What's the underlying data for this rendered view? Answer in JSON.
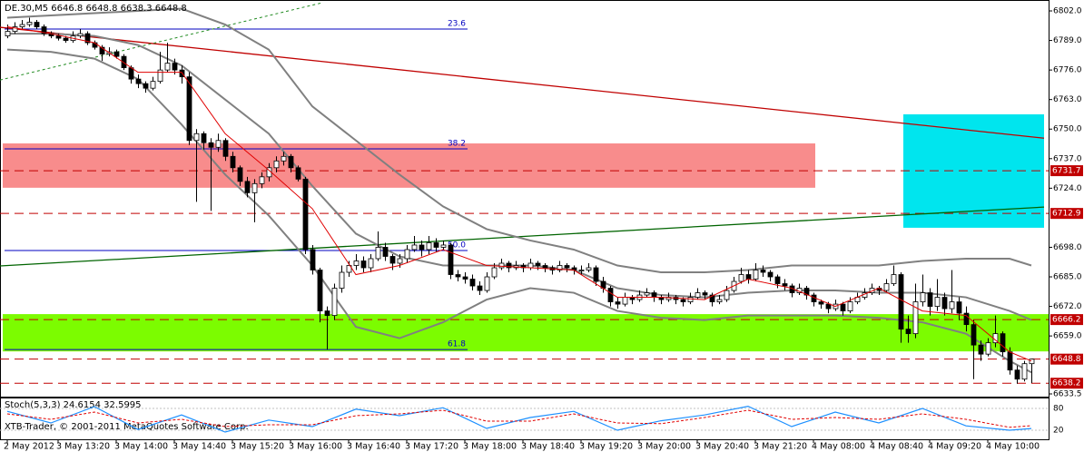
{
  "chart_data": {
    "type": "candlestick",
    "title": "DE.30,M5  6646.8 6648.8 6638.3 6648.8",
    "footer": "XTB-Trader, © 2001-2011 MetaQuotes Software Corp.",
    "categories": [
      "2 May 2012",
      null,
      null,
      null,
      null,
      null,
      null,
      "3 May 13:20",
      null,
      null,
      null,
      null,
      null,
      null,
      null,
      "3 May 14:00",
      null,
      null,
      null,
      null,
      null,
      null,
      null,
      "3 May 14:40",
      null,
      null,
      null,
      null,
      null,
      null,
      null,
      "3 May 15:20",
      null,
      null,
      null,
      null,
      null,
      null,
      null,
      "3 May 16:00",
      null,
      null,
      null,
      null,
      null,
      null,
      null,
      "3 May 16:40",
      null,
      null,
      null,
      null,
      null,
      null,
      null,
      "3 May 17:20",
      null,
      null,
      null,
      null,
      null,
      null,
      null,
      "3 May 18:00",
      null,
      null,
      null,
      null,
      null,
      null,
      null,
      "3 May 18:40",
      null,
      null,
      null,
      null,
      null,
      null,
      null,
      "3 May 19:20",
      null,
      null,
      null,
      null,
      null,
      null,
      null,
      "3 May 20:00",
      null,
      null,
      null,
      null,
      null,
      null,
      null,
      "3 May 20:40",
      null,
      null,
      null,
      null,
      null,
      null,
      null,
      "3 May 21:20",
      null,
      null,
      null,
      null,
      null,
      null,
      null,
      "4 May 08:00",
      null,
      null,
      null,
      null,
      null,
      null,
      null,
      "4 May 08:40",
      null,
      null,
      null,
      null,
      null,
      null,
      null,
      "4 May 09:20",
      null,
      null,
      null,
      null,
      null,
      null,
      null,
      "4 May 10:00",
      null,
      null,
      null,
      null,
      null,
      null
    ],
    "candles": [
      [
        6791,
        6796,
        6790,
        6793
      ],
      [
        6793,
        6797,
        6792,
        6795
      ],
      [
        6795,
        6798,
        6794,
        6796
      ],
      [
        6796,
        6799,
        6795,
        6797
      ],
      [
        6797,
        6798,
        6794,
        6795
      ],
      [
        6795,
        6796,
        6791,
        6792
      ],
      [
        6792,
        6793,
        6790,
        6791
      ],
      [
        6791,
        6792,
        6789,
        6790
      ],
      [
        6790,
        6791,
        6788,
        6789
      ],
      [
        6789,
        6793,
        6788,
        6791
      ],
      [
        6791,
        6794,
        6790,
        6792
      ],
      [
        6792,
        6793,
        6787,
        6788
      ],
      [
        6788,
        6789,
        6785,
        6786
      ],
      [
        6786,
        6787,
        6780,
        6783
      ],
      [
        6783,
        6786,
        6782,
        6784
      ],
      [
        6784,
        6785,
        6781,
        6782
      ],
      [
        6782,
        6783,
        6776,
        6777
      ],
      [
        6777,
        6778,
        6770,
        6772
      ],
      [
        6772,
        6774,
        6768,
        6770
      ],
      [
        6770,
        6771,
        6766,
        6768
      ],
      [
        6768,
        6773,
        6767,
        6771
      ],
      [
        6771,
        6784,
        6770,
        6776
      ],
      [
        6776,
        6788,
        6775,
        6779
      ],
      [
        6779,
        6781,
        6774,
        6776
      ],
      [
        6776,
        6778,
        6770,
        6773
      ],
      [
        6773,
        6775,
        6743,
        6745
      ],
      [
        6745,
        6750,
        6718,
        6748
      ],
      [
        6748,
        6749,
        6741,
        6744
      ],
      [
        6744,
        6746,
        6714,
        6742
      ],
      [
        6742,
        6748,
        6740,
        6745
      ],
      [
        6745,
        6746,
        6736,
        6738
      ],
      [
        6738,
        6740,
        6731,
        6733
      ],
      [
        6733,
        6734,
        6725,
        6727
      ],
      [
        6727,
        6729,
        6720,
        6722
      ],
      [
        6722,
        6728,
        6709,
        6726
      ],
      [
        6726,
        6731,
        6724,
        6729
      ],
      [
        6729,
        6735,
        6727,
        6733
      ],
      [
        6733,
        6738,
        6731,
        6736
      ],
      [
        6736,
        6740,
        6734,
        6738
      ],
      [
        6738,
        6739,
        6731,
        6733
      ],
      [
        6733,
        6734,
        6727,
        6728
      ],
      [
        6728,
        6729,
        6695,
        6697
      ],
      [
        6697,
        6699,
        6686,
        6688
      ],
      [
        6688,
        6689,
        6665,
        6670
      ],
      [
        6670,
        6672,
        6653,
        6668
      ],
      [
        6668,
        6682,
        6666,
        6680
      ],
      [
        6680,
        6690,
        6678,
        6687
      ],
      [
        6687,
        6692,
        6685,
        6690
      ],
      [
        6690,
        6695,
        6688,
        6692
      ],
      [
        6692,
        6694,
        6687,
        6689
      ],
      [
        6689,
        6695,
        6687,
        6693
      ],
      [
        6693,
        6705,
        6692,
        6698
      ],
      [
        6698,
        6700,
        6692,
        6694
      ],
      [
        6694,
        6695,
        6688,
        6691
      ],
      [
        6691,
        6695,
        6689,
        6693
      ],
      [
        6693,
        6699,
        6691,
        6697
      ],
      [
        6697,
        6703,
        6696,
        6699
      ],
      [
        6699,
        6701,
        6694,
        6697
      ],
      [
        6697,
        6703,
        6695,
        6700
      ],
      [
        6700,
        6702,
        6696,
        6698
      ],
      [
        6698,
        6701,
        6697,
        6699
      ],
      [
        6699,
        6700,
        6684,
        6686
      ],
      [
        6686,
        6688,
        6683,
        6685
      ],
      [
        6685,
        6687,
        6682,
        6684
      ],
      [
        6684,
        6686,
        6679,
        6681
      ],
      [
        6681,
        6683,
        6677,
        6679
      ],
      [
        6679,
        6687,
        6678,
        6685
      ],
      [
        6685,
        6691,
        6684,
        6689
      ],
      [
        6689,
        6693,
        6688,
        6691
      ],
      [
        6691,
        6692,
        6687,
        6689
      ],
      [
        6689,
        6692,
        6688,
        6690
      ],
      [
        6690,
        6691,
        6687,
        6689
      ],
      [
        6689,
        6693,
        6688,
        6691
      ],
      [
        6691,
        6692,
        6688,
        6690
      ],
      [
        6690,
        6691,
        6687,
        6689
      ],
      [
        6689,
        6690,
        6686,
        6688
      ],
      [
        6688,
        6692,
        6687,
        6690
      ],
      [
        6690,
        6691,
        6687,
        6689
      ],
      [
        6689,
        6690,
        6686,
        6688
      ],
      [
        6688,
        6690,
        6686,
        6688
      ],
      [
        6688,
        6691,
        6687,
        6689
      ],
      [
        6689,
        6690,
        6681,
        6683
      ],
      [
        6683,
        6685,
        6678,
        6680
      ],
      [
        6680,
        6681,
        6672,
        6674
      ],
      [
        6674,
        6676,
        6671,
        6673
      ],
      [
        6673,
        6678,
        6672,
        6676
      ],
      [
        6676,
        6677,
        6673,
        6675
      ],
      [
        6675,
        6679,
        6674,
        6677
      ],
      [
        6677,
        6680,
        6676,
        6678
      ],
      [
        6678,
        6679,
        6674,
        6676
      ],
      [
        6676,
        6677,
        6673,
        6675
      ],
      [
        6675,
        6678,
        6674,
        6676
      ],
      [
        6676,
        6677,
        6673,
        6675
      ],
      [
        6675,
        6676,
        6672,
        6674
      ],
      [
        6674,
        6678,
        6673,
        6676
      ],
      [
        6676,
        6680,
        6675,
        6678
      ],
      [
        6678,
        6679,
        6675,
        6677
      ],
      [
        6677,
        6678,
        6672,
        6674
      ],
      [
        6674,
        6677,
        6673,
        6675
      ],
      [
        6675,
        6681,
        6674,
        6679
      ],
      [
        6679,
        6685,
        6678,
        6683
      ],
      [
        6683,
        6689,
        6682,
        6686
      ],
      [
        6686,
        6688,
        6682,
        6684
      ],
      [
        6684,
        6691,
        6683,
        6688
      ],
      [
        6688,
        6690,
        6685,
        6687
      ],
      [
        6687,
        6688,
        6683,
        6685
      ],
      [
        6685,
        6686,
        6680,
        6682
      ],
      [
        6682,
        6684,
        6679,
        6681
      ],
      [
        6681,
        6682,
        6676,
        6678
      ],
      [
        6678,
        6682,
        6677,
        6680
      ],
      [
        6680,
        6681,
        6675,
        6677
      ],
      [
        6677,
        6678,
        6672,
        6674
      ],
      [
        6674,
        6675,
        6671,
        6673
      ],
      [
        6673,
        6674,
        6669,
        6671
      ],
      [
        6671,
        6675,
        6670,
        6673
      ],
      [
        6673,
        6674,
        6668,
        6670
      ],
      [
        6670,
        6676,
        6669,
        6674
      ],
      [
        6674,
        6678,
        6673,
        6676
      ],
      [
        6676,
        6680,
        6675,
        6678
      ],
      [
        6678,
        6682,
        6677,
        6680
      ],
      [
        6680,
        6681,
        6677,
        6679
      ],
      [
        6679,
        6684,
        6678,
        6682
      ],
      [
        6682,
        6690,
        6681,
        6686
      ],
      [
        6686,
        6687,
        6656,
        6662
      ],
      [
        6662,
        6668,
        6656,
        6660
      ],
      [
        6660,
        6682,
        6658,
        6674
      ],
      [
        6674,
        6686,
        6672,
        6678
      ],
      [
        6678,
        6680,
        6668,
        6672
      ],
      [
        6672,
        6684,
        6670,
        6676
      ],
      [
        6676,
        6678,
        6668,
        6671
      ],
      [
        6671,
        6688,
        6669,
        6674
      ],
      [
        6674,
        6676,
        6666,
        6669
      ],
      [
        6669,
        6672,
        6661,
        6664
      ],
      [
        6664,
        6666,
        6640,
        6655
      ],
      [
        6655,
        6657,
        6648,
        6651
      ],
      [
        6651,
        6658,
        6650,
        6656
      ],
      [
        6656,
        6668,
        6654,
        6660
      ],
      [
        6660,
        6661,
        6650,
        6652
      ],
      [
        6652,
        6654,
        6642,
        6644
      ],
      [
        6644,
        6646,
        6638,
        6640
      ],
      [
        6640,
        6648,
        6639,
        6646.8
      ],
      [
        6646.8,
        6648.8,
        6638.3,
        6648.8
      ]
    ],
    "ylim": [
      6632.3,
      6806.8
    ],
    "yticks": [
      {
        "value": 6802,
        "label": "6802.0"
      },
      {
        "value": 6789,
        "label": "6789.0"
      },
      {
        "value": 6776,
        "label": "6776.0"
      },
      {
        "value": 6763,
        "label": "6763.0"
      },
      {
        "value": 6750,
        "label": "6750.0"
      },
      {
        "value": 6737,
        "label": "6737.0"
      },
      {
        "value": 6724,
        "label": "6724.0"
      },
      {
        "value": 6698,
        "label": "6698.0"
      },
      {
        "value": 6685,
        "label": "6685.0"
      },
      {
        "value": 6672,
        "label": "6672.0"
      },
      {
        "value": 6659,
        "label": "6659.0"
      },
      6633.5
    ],
    "levels": [
      6731.7,
      6712.9,
      6666.2,
      6648.8,
      6638.2
    ],
    "level_color": "#c00000",
    "fibo": [
      {
        "label": "23.6",
        "price": 6794
      },
      {
        "label": "38.2",
        "price": 6741.3
      },
      {
        "label": "50.0",
        "price": 6696.6
      },
      {
        "label": "61.8",
        "price": 6653
      }
    ],
    "fibo_color": "#0000c0",
    "zones": [
      {
        "top": 6743.7,
        "bottom": 6724.2,
        "color": "#f88c8c"
      },
      {
        "top": 6668.6,
        "bottom": 6652.2,
        "color": "#7cfc00"
      },
      {
        "top": 6756.5,
        "bottom": 6706.6,
        "color": "#00e5ee"
      }
    ],
    "trendlines": [
      {
        "color": "#c00000",
        "prices": [
          6794.8,
          6746
        ]
      },
      {
        "color": "#006400",
        "prices": [
          6689.8,
          6715.7
        ]
      },
      {
        "color": "#228b22",
        "prices": [
          6771.6,
          6805.6
        ],
        "dotted": true
      }
    ],
    "bands": {
      "x": [
        0,
        6,
        12,
        18,
        24,
        30,
        36,
        42,
        48,
        54,
        60,
        66,
        72,
        78,
        84,
        90,
        96,
        102,
        108,
        114,
        120,
        126,
        132,
        138,
        141
      ],
      "color": "#808080",
      "upper": [
        6799,
        6800,
        6801,
        6802,
        6803,
        6796,
        6785,
        6760,
        6745,
        6730,
        6716,
        6706,
        6701,
        6697,
        6690,
        6687,
        6687,
        6688,
        6690,
        6690,
        6690,
        6692,
        6693,
        6693,
        6690
      ],
      "middle": [
        6792,
        6792,
        6791,
        6787,
        6778,
        6763,
        6748,
        6725,
        6704,
        6694,
        6690,
        6690,
        6690,
        6688,
        6680,
        6677,
        6676,
        6678,
        6679,
        6679,
        6678,
        6678,
        6676,
        6670,
        6666
      ],
      "lower": [
        6785,
        6784,
        6781,
        6772,
        6752,
        6730,
        6712,
        6690,
        6663,
        6658,
        6665,
        6675,
        6680,
        6678,
        6670,
        6667,
        6666,
        6668,
        6668,
        6668,
        6667,
        6665,
        6660,
        6648,
        6643
      ],
      "ma": [
        6795,
        6792,
        6788,
        6775,
        6775,
        6748,
        6732,
        6715,
        6686,
        6690,
        6697,
        6690,
        6689,
        6688,
        6676,
        6676,
        6675,
        6684,
        6680,
        6672,
        6680,
        6670,
        6668,
        6652,
        6648
      ],
      "ma_color": "#e00000"
    },
    "stoch": {
      "title": "Stoch(5,3,3) 24.6154 32.5995",
      "ylim": [
        0,
        100
      ],
      "yticks": [
        80,
        20
      ],
      "main": [
        72,
        40,
        85,
        22,
        62,
        15,
        48,
        30,
        78,
        60,
        82,
        25,
        55,
        72,
        20,
        46,
        62,
        86,
        30,
        70,
        40,
        80,
        32,
        20,
        24.6154
      ],
      "signal": [
        65,
        50,
        70,
        40,
        50,
        30,
        35,
        35,
        60,
        65,
        75,
        45,
        45,
        65,
        40,
        38,
        55,
        75,
        50,
        55,
        50,
        65,
        50,
        28,
        32.5995
      ],
      "main_color": "#1e90ff",
      "signal_color": "#e00000"
    }
  }
}
